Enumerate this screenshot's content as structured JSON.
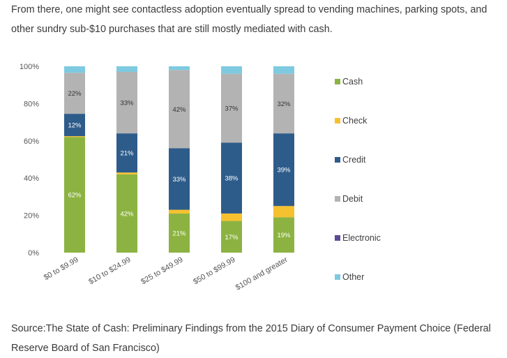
{
  "article": {
    "intro": "From there, one might see contactless adoption eventually spread to vending machines, parking spots, and other sundry sub-$10 purchases that are still mostly mediated with cash.",
    "source": "Source:The State of Cash: Preliminary Findings from the 2015 Diary of Consumer Payment Choice (Federal Reserve Board of San Francisco)"
  },
  "chart_data": {
    "type": "bar",
    "stacked": true,
    "categories": [
      "$0 to $9.99",
      "$10 to $24.99",
      "$25 to $49.99",
      "$50 to $99.99",
      "$100 and greater"
    ],
    "ylim": [
      0,
      100
    ],
    "yticks": [
      "0%",
      "20%",
      "40%",
      "60%",
      "80%",
      "100%"
    ],
    "grid": false,
    "legend_position": "right",
    "series": [
      {
        "name": "Cash",
        "color": "#8cb341",
        "values": [
          62,
          42,
          21,
          17,
          19
        ],
        "labels": [
          "62%",
          "42%",
          "21%",
          "17%",
          "19%"
        ],
        "label_color": "#ffffff"
      },
      {
        "name": "Check",
        "color": "#f6c12e",
        "values": [
          0.5,
          1,
          2,
          4,
          6
        ],
        "labels": [
          "",
          "",
          "",
          "",
          ""
        ],
        "label_color": "#ffffff"
      },
      {
        "name": "Credit",
        "color": "#2e5c8a",
        "values": [
          12,
          21,
          33,
          38,
          39
        ],
        "labels": [
          "12%",
          "21%",
          "33%",
          "38%",
          "39%"
        ],
        "label_color": "#ffffff"
      },
      {
        "name": "Debit",
        "color": "#b3b3b3",
        "values": [
          22,
          33,
          42,
          37,
          32
        ],
        "labels": [
          "22%",
          "33%",
          "42%",
          "37%",
          "32%"
        ],
        "label_color": "#333333"
      },
      {
        "name": "Electronic",
        "color": "#5c4a94",
        "values": [
          0,
          0,
          0,
          0,
          0
        ],
        "labels": [
          "",
          "",
          "",
          "",
          ""
        ],
        "label_color": "#ffffff"
      },
      {
        "name": "Other",
        "color": "#7ecae1",
        "values": [
          3.5,
          3,
          2,
          4,
          4
        ],
        "labels": [
          "",
          "",
          "",
          "",
          ""
        ],
        "label_color": "#333333"
      }
    ]
  }
}
